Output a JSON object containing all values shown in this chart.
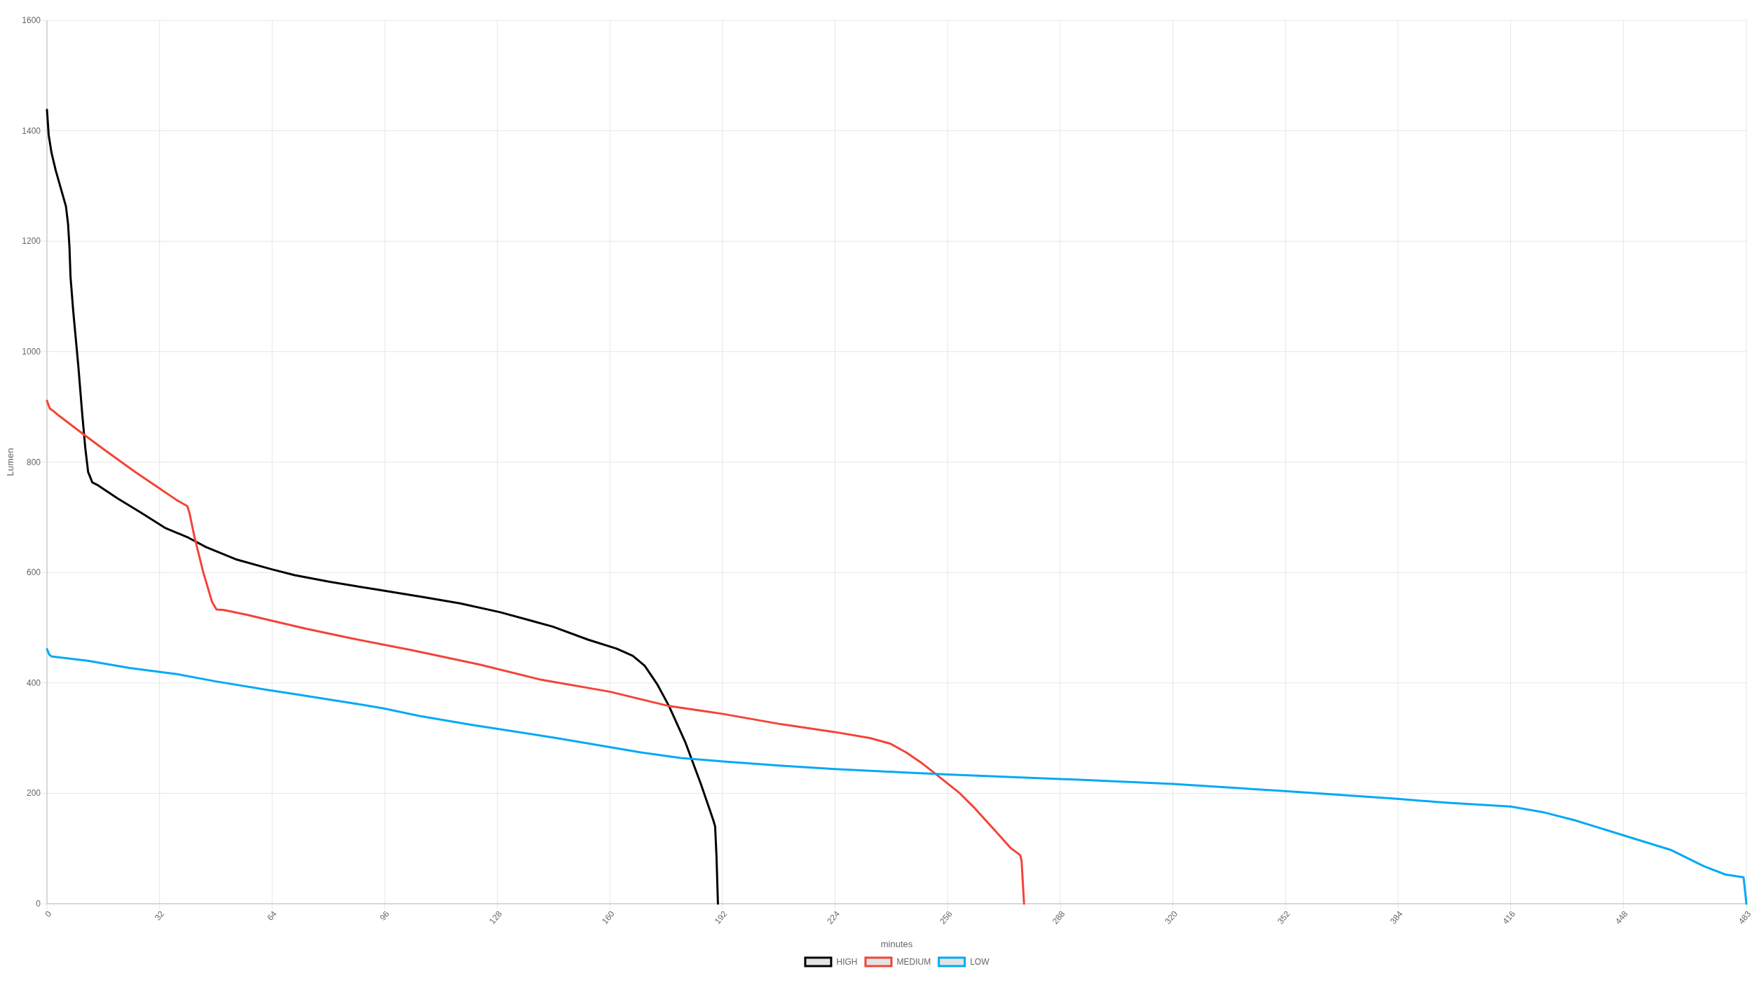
{
  "chart_data": {
    "type": "line",
    "xlabel": "minutes",
    "ylabel": "Lumen",
    "xlim": [
      0,
      483
    ],
    "xticks": [
      0,
      32,
      64,
      96,
      128,
      160,
      192,
      224,
      256,
      288,
      320,
      352,
      384,
      416,
      448,
      483
    ],
    "ylim": [
      0,
      1600
    ],
    "yticks": [
      0,
      200,
      400,
      600,
      800,
      1000,
      1200,
      1400,
      1600
    ],
    "grid": true,
    "legend": "bottom",
    "marker": "none",
    "line_style": "solid",
    "series": [
      {
        "name": "HIGH",
        "color": "#000000",
        "x": [
          0,
          0.5,
          1.3,
          2.5,
          4.2,
          5.4,
          6,
          6.4,
          6.7,
          7.5,
          8.9,
          10,
          10.9,
          11.7,
          12.9,
          14.2,
          20.1,
          26.8,
          33.5,
          40.2,
          45.2,
          53.6,
          63.7,
          70.4,
          80.4,
          93.8,
          107.2,
          117.4,
          128.8,
          143.7,
          153.9,
          161.9,
          166.5,
          169.9,
          173.4,
          176.8,
          181.4,
          185.9,
          189.4,
          189.9,
          190.3,
          190.7
        ],
        "values": [
          1438,
          1392,
          1360,
          1328,
          1290,
          1263,
          1231,
          1189,
          1135,
          1071,
          975,
          889,
          825,
          782,
          763,
          759,
          734,
          708,
          681,
          663,
          646,
          624,
          606,
          595,
          583,
          569,
          555,
          544,
          528,
          502,
          478,
          462,
          449,
          431,
          398,
          358,
          293,
          216,
          151,
          140,
          85,
          0
        ]
      },
      {
        "name": "MEDIUM",
        "color": "#f44336",
        "x": [
          0,
          0.8,
          1.7,
          3.4,
          10,
          16.8,
          25.1,
          31.8,
          36.9,
          39.9,
          40.5,
          41.9,
          44.4,
          46.9,
          48.2,
          50.3,
          57,
          63.7,
          73.7,
          87.1,
          103.9,
          123.1,
          140.2,
          160,
          176.8,
          191.9,
          208.8,
          223.9,
          233.9,
          239.7,
          244.2,
          248.8,
          252.8,
          259.1,
          263.7,
          269.4,
          273.9,
          276.6,
          277,
          277.7
        ],
        "values": [
          911,
          897,
          893,
          884,
          852,
          820,
          782,
          753,
          731,
          720,
          708,
          665,
          601,
          547,
          533,
          532,
          523,
          513,
          498,
          480,
          459,
          433,
          406,
          384,
          358,
          344,
          325,
          311,
          300,
          290,
          274,
          254,
          234,
          202,
          173,
          133,
          101,
          88,
          78,
          0
        ]
      },
      {
        "name": "LOW",
        "color": "#03a9f4",
        "x": [
          0,
          0.7,
          1.3,
          11.7,
          23.5,
          36.9,
          47.7,
          62,
          72,
          87.1,
          95.5,
          105.9,
          120.8,
          144.8,
          168.8,
          180.2,
          191.7,
          208.8,
          223.9,
          243.1,
          256,
          288,
          320,
          352,
          383.8,
          397.7,
          416,
          425.1,
          434.3,
          448,
          461.7,
          470.9,
          477,
          482.2,
          483
        ],
        "values": [
          461,
          451,
          448,
          440,
          427,
          416,
          403,
          388,
          378,
          363,
          354,
          340,
          324,
          300,
          274,
          264,
          258,
          250,
          244,
          238,
          234,
          226,
          217,
          204,
          190,
          183,
          176,
          166,
          151,
          124,
          97,
          68,
          53,
          48,
          0
        ]
      }
    ]
  }
}
